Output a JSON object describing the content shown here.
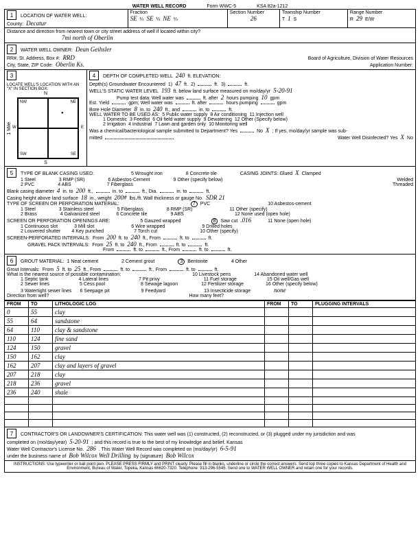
{
  "header": {
    "title": "WATER WELL RECORD",
    "form_no": "Form WWC-5",
    "ksa": "KSA 82a-1212"
  },
  "loc": {
    "section_label": "LOCATION OF WATER WELL:",
    "county_label": "County:",
    "county": "Decatur",
    "fraction_label": "Fraction",
    "frac1": "SE",
    "q1": "¼",
    "frac2": "SE",
    "q2": "¼",
    "frac3": "NE",
    "q3": "¼",
    "sec_label": "Section Number",
    "sec": "26",
    "twp_label": "Township Number",
    "twp_t": "T",
    "twp": "1",
    "twp_s": "S",
    "rng_label": "Range Number",
    "rng_r": "R",
    "rng": "29",
    "rng_ew": "E/W",
    "dist_label": "Distance and direction from nearest town or city street address of well if located within city?",
    "dist": "7mi north of Oberlin"
  },
  "owner": {
    "label": "WATER WELL OWNER:",
    "name": "Dean Geihsler",
    "addr_label": "RR#, St. Address, Box #:",
    "addr": "RRD",
    "city_label": "City, State, ZIP Code:",
    "city": "Oberlin Ks.",
    "board": "Board of Agriculture, Division of Water Resources",
    "app_label": "Application Number:"
  },
  "sec3": {
    "label": "LOCATE WELL'S LOCATION WITH AN \"X\" IN SECTION BOX:",
    "n": "N",
    "s": "S",
    "e": "E",
    "w": "W",
    "nw": "NW",
    "ne": "NE",
    "sw": "SW",
    "se": "SE",
    "mile": "1 Mile"
  },
  "sec4": {
    "depth_label": "DEPTH OF COMPLETED WELL",
    "depth": "240",
    "depth_unit": "ft. ELEVATION:",
    "gw_label": "Depth(s) Groundwater Encountered",
    "gw1": "47",
    "ft1": "ft.",
    "ft2": "2)",
    "ft3": "ft.",
    "ft4": "3)",
    "ft5": "ft.",
    "swl_label": "WELL'S STATIC WATER LEVEL",
    "swl": "193",
    "swl_unit": "ft. below land surface measured on mo/day/yr",
    "swl_date": "5-20-91",
    "pump_label": "Pump test data: Well water was",
    "pump_after": "ft. after",
    "pump_hrs": "2",
    "pump_hrs_unit": "hours pumping",
    "pump_gpm": "10",
    "gpm": "gpm",
    "yield_label": "Est. Yield",
    "yield_unit": "gpm; Well water was",
    "yield_after": "ft. after",
    "yield_hrs_unit": "hours pumping",
    "yield_gpm": "gpm",
    "bore_label": "Bore Hole Diameter",
    "bore": "8",
    "bore_to": "in. to",
    "bore_depth": "240",
    "bore_ft": "ft., and",
    "bore_in2": "in. to",
    "bore_ft2": "ft.",
    "use_label": "WELL WATER TO BE USED AS:",
    "u1": "1 Domestic",
    "u2": "2 Irrigation",
    "u3": "3 Feedlot",
    "u4": "4 Industrial",
    "u5": "5 Public water supply",
    "u6": "6 Oil field water supply",
    "u7": "7 Lawn and garden only",
    "u8": "8 Air conditioning",
    "u9": "9 Dewatering",
    "u10": "10 Monitoring well",
    "u11": "11 Injection well",
    "u12": "12 Other (Specify below)",
    "chem_label": "Was a chemical/bacteriological sample submitted to Department? Yes",
    "chem_no": "No",
    "chem_x": "X",
    "chem_tail": "; If yes, mo/day/yr sample was sub-",
    "chem_mitted": "mitted",
    "disinfect": "Water Well Disinfected? Yes",
    "dis_x": "X",
    "dis_no": "No"
  },
  "sec5": {
    "label": "TYPE OF BLANK CASING USED:",
    "c1": "1 Steel",
    "c2": "2 PVC",
    "c3": "3 RMP (SR)",
    "c4": "4 ABS",
    "c5": "5 Wrought iron",
    "c6": "6 Asbestos-Cement",
    "c7": "7 Fiberglass",
    "c8": "8 Concrete tile",
    "c9": "9 Other (specify below)",
    "joints_label": "CASING JOINTS: Glued",
    "glued_x": "X",
    "clamped": "Clamped",
    "welded": "Welded",
    "threaded": "Threaded",
    "dia_label": "Blank casing diameter",
    "dia": "4",
    "dia_in": "in. to",
    "dia_to": "200",
    "dia_ft": "ft.,",
    "dia2": "in. to",
    "dia_ft2": "ft., Dia.",
    "dia3": "in. to",
    "dia_ft3": "ft.",
    "height_label": "Casing height above land surface",
    "height": "18",
    "height_in": "in., weight",
    "weight": "200#",
    "lbs": "lbs./ft. Wall thickness or gauge No.",
    "gauge": "SDR 21",
    "screen_label": "TYPE OF SCREEN OR PERFORATION MATERIAL:",
    "s1": "1 Steel",
    "s2": "2 Brass",
    "s3": "3 Stainless steel",
    "s4": "4 Galvanized steel",
    "s5": "5 Fiberglass",
    "s6": "6 Concrete tile",
    "s7": "7",
    "s7b": "PVC",
    "s8": "8 RMP (SR)",
    "s9": "9 ABS",
    "s10": "10 Asbestos-cement",
    "s11": "11 Other (specify)",
    "s12": "12 None used (open hole)",
    "open_label": "SCREEN OR PERFORATION OPENINGS ARE:",
    "o1": "1 Continuous slot",
    "o2": "2 Louvered shutter",
    "o3": "3 Mill slot",
    "o4": "4 Key punched",
    "o5": "5 Gauzed wrapped",
    "o6": "6 Wire wrapped",
    "o7": "7 Torch cut",
    "o8": "8",
    "o8b": "Saw cut",
    "o8c": ".016",
    "o9": "9 Drilled holes",
    "o10": "10 Other (specify)",
    "o11": "11 None (open hole)",
    "spi_label": "SCREEN-PERFORATED INTERVALS:",
    "spi_from": "From",
    "spi_f1": "200",
    "spi_to": "ft. to",
    "spi_t1": "240",
    "spi_ft": "ft., From",
    "spi_ft2": "ft. to",
    "spi_ft3": "ft.",
    "gpi_label": "GRAVEL PACK INTERVALS:",
    "gpi_from": "From",
    "gpi_f1": "25",
    "gpi_to": "ft. to",
    "gpi_t1": "240",
    "gpi_ft": "ft., From",
    "gpi_ft2": "ft. to",
    "gpi_ft3": "ft.",
    "gpi2_from": "From",
    "gpi2_to": "ft. to",
    "gpi2_ft": "ft., From",
    "gpi2_ft2": "ft. to",
    "gpi2_ft3": "ft."
  },
  "sec6": {
    "label": "GROUT MATERIAL:",
    "g1": "1 Neat cement",
    "g2": "2 Cement grout",
    "g3": "3",
    "g3b": "Bentonite",
    "g4": "4 Other",
    "int_label": "Grout Intervals:",
    "int_from": "From",
    "int_f1": "5",
    "int_to": "ft. to",
    "int_t1": "25",
    "int_ft": "ft., From",
    "int_ft2": "ft. to",
    "int_ft3": "ft., From",
    "int_ft4": "ft. to",
    "int_ft5": "ft.",
    "contam_label": "What is the nearest source of possible contamination:",
    "p1": "1 Septic tank",
    "p2": "2 Sewer lines",
    "p3": "3 Watertight sewer lines",
    "p4": "4 Lateral lines",
    "p5": "5 Cess pool",
    "p6": "6 Seepage pit",
    "p7": "7 Pit privy",
    "p8": "8 Sewage lagoon",
    "p9": "9 Feedyard",
    "p10": "10 Livestock pens",
    "p11": "11 Fuel storage",
    "p12": "12 Fertilizer storage",
    "p13": "13 Insecticide storage",
    "p14": "14 Abandoned water well",
    "p15": "15 Oil well/Gas well",
    "p16": "16 Other (specify below)",
    "p16v": "none",
    "dir_label": "Direction from well?",
    "feet_label": "How many feet?"
  },
  "log": {
    "h_from": "FROM",
    "h_to": "TO",
    "h_lith": "LITHOLOGIC LOG",
    "h_from2": "FROM",
    "h_to2": "TO",
    "h_plug": "PLUGGING INTERVALS",
    "rows": [
      {
        "f": "0",
        "t": "55",
        "d": "clay"
      },
      {
        "f": "55",
        "t": "64",
        "d": "sandstone"
      },
      {
        "f": "64",
        "t": "110",
        "d": "clay & sandstone"
      },
      {
        "f": "110",
        "t": "124",
        "d": "fine sand"
      },
      {
        "f": "124",
        "t": "150",
        "d": "gravel"
      },
      {
        "f": "150",
        "t": "162",
        "d": "clay"
      },
      {
        "f": "162",
        "t": "207",
        "d": "clay and layers of gravel"
      },
      {
        "f": "207",
        "t": "218",
        "d": "clay"
      },
      {
        "f": "218",
        "t": "236",
        "d": "gravel"
      },
      {
        "f": "236",
        "t": "240",
        "d": "shale"
      }
    ]
  },
  "sec7": {
    "label": "CONTRACTOR'S OR LANDOWNER'S CERTIFICATION: This water well was (1) constructed, (2) reconstructed, or (3) plugged under my jurisdiction and was",
    "comp_label": "completed on (mo/day/year)",
    "comp_date": "5-20-91",
    "tail": "; and this record is true to the best of my knowledge and belief. Kansas",
    "lic_label": "Water Well Contractor's License No.",
    "lic": "286",
    "rec_label": ". This Water Well Record was completed on (mo/day/yr)",
    "rec_date": "6-5-91",
    "bus_label": "under the business name of",
    "bus": "Bob Wilcox Well Drilling",
    "sig_label": "by (signature)",
    "sig": "Bob Wilcox"
  },
  "footer": "INSTRUCTIONS: Use typewriter or ball point pen. PLEASE PRESS FIRMLY and PRINT clearly. Please fill in blanks, underline or circle the correct answers. Send top three copies to Kansas Department of Health and Environment, Bureau of Water, Topeka, Kansas 66620-7320. Telephone: 913-296-5545. Send one to WATER WELL OWNER and retain one for your records."
}
